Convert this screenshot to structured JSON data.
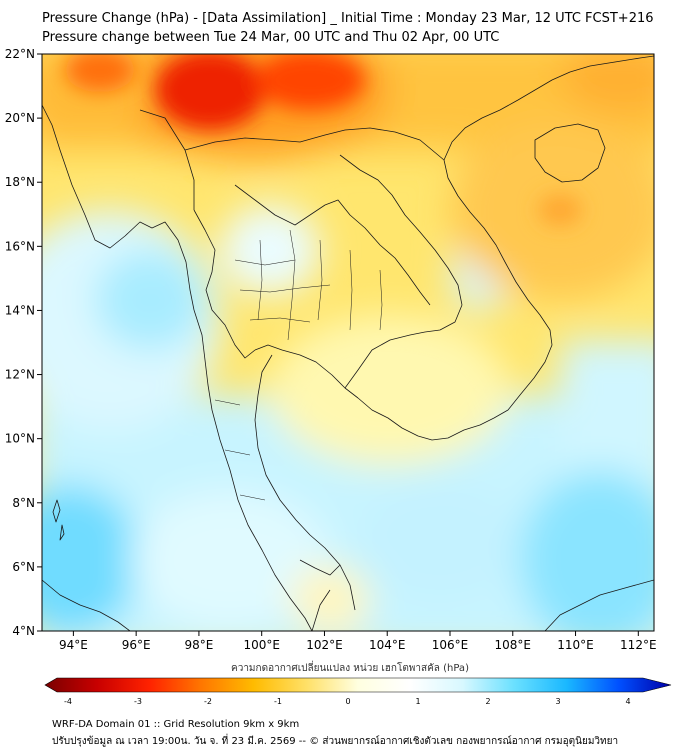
{
  "title": {
    "line1": "Pressure Change (hPa) - [Data Assimilation] _ Initial Time : Monday 23 Mar, 12 UTC FCST+216",
    "line2": "Pressure change between Tue 24 Mar, 00 UTC and Thu 02 Apr, 00 UTC"
  },
  "map": {
    "lat_ticks": [
      "22°N",
      "20°N",
      "18°N",
      "16°N",
      "14°N",
      "12°N",
      "10°N",
      "8°N",
      "6°N",
      "4°N"
    ],
    "lon_ticks": [
      "94°E",
      "96°E",
      "98°E",
      "100°E",
      "102°E",
      "104°E",
      "106°E",
      "108°E",
      "110°E",
      "112°E"
    ],
    "lat_range": [
      4,
      22
    ],
    "lon_range": [
      93,
      112.5
    ],
    "border_color": "#1a1a1a"
  },
  "colorbar": {
    "title": "ความกดอากาศเปลี่ยนแปลง หน่วย เฮกโตพาสคัล (hPa)",
    "tick_labels": [
      "-4",
      "-3",
      "-2",
      "-1",
      "0",
      "1",
      "2",
      "3",
      "4"
    ],
    "range": [
      -4,
      4
    ],
    "colors": [
      "#7a0000",
      "#c80000",
      "#ff2200",
      "#ff7700",
      "#ffbb00",
      "#ffe066",
      "#ffffe0",
      "#ffffff",
      "#d8f8ff",
      "#6ae0ff",
      "#1ab8ff",
      "#0050ff",
      "#0000a8"
    ]
  },
  "footer": {
    "line1": "WRF-DA Domain 01 :: Grid Resolution 9km x 9km",
    "line2": "ปรับปรุงข้อมูล ณ เวลา 19:00น. วัน จ. ที่ 23 มี.ค. 2569 -- © ส่วนพยากรณ์อากาศเชิงตัวเลข กองพยากรณ์อากาศ กรมอุตุนิยมวิทยา"
  }
}
